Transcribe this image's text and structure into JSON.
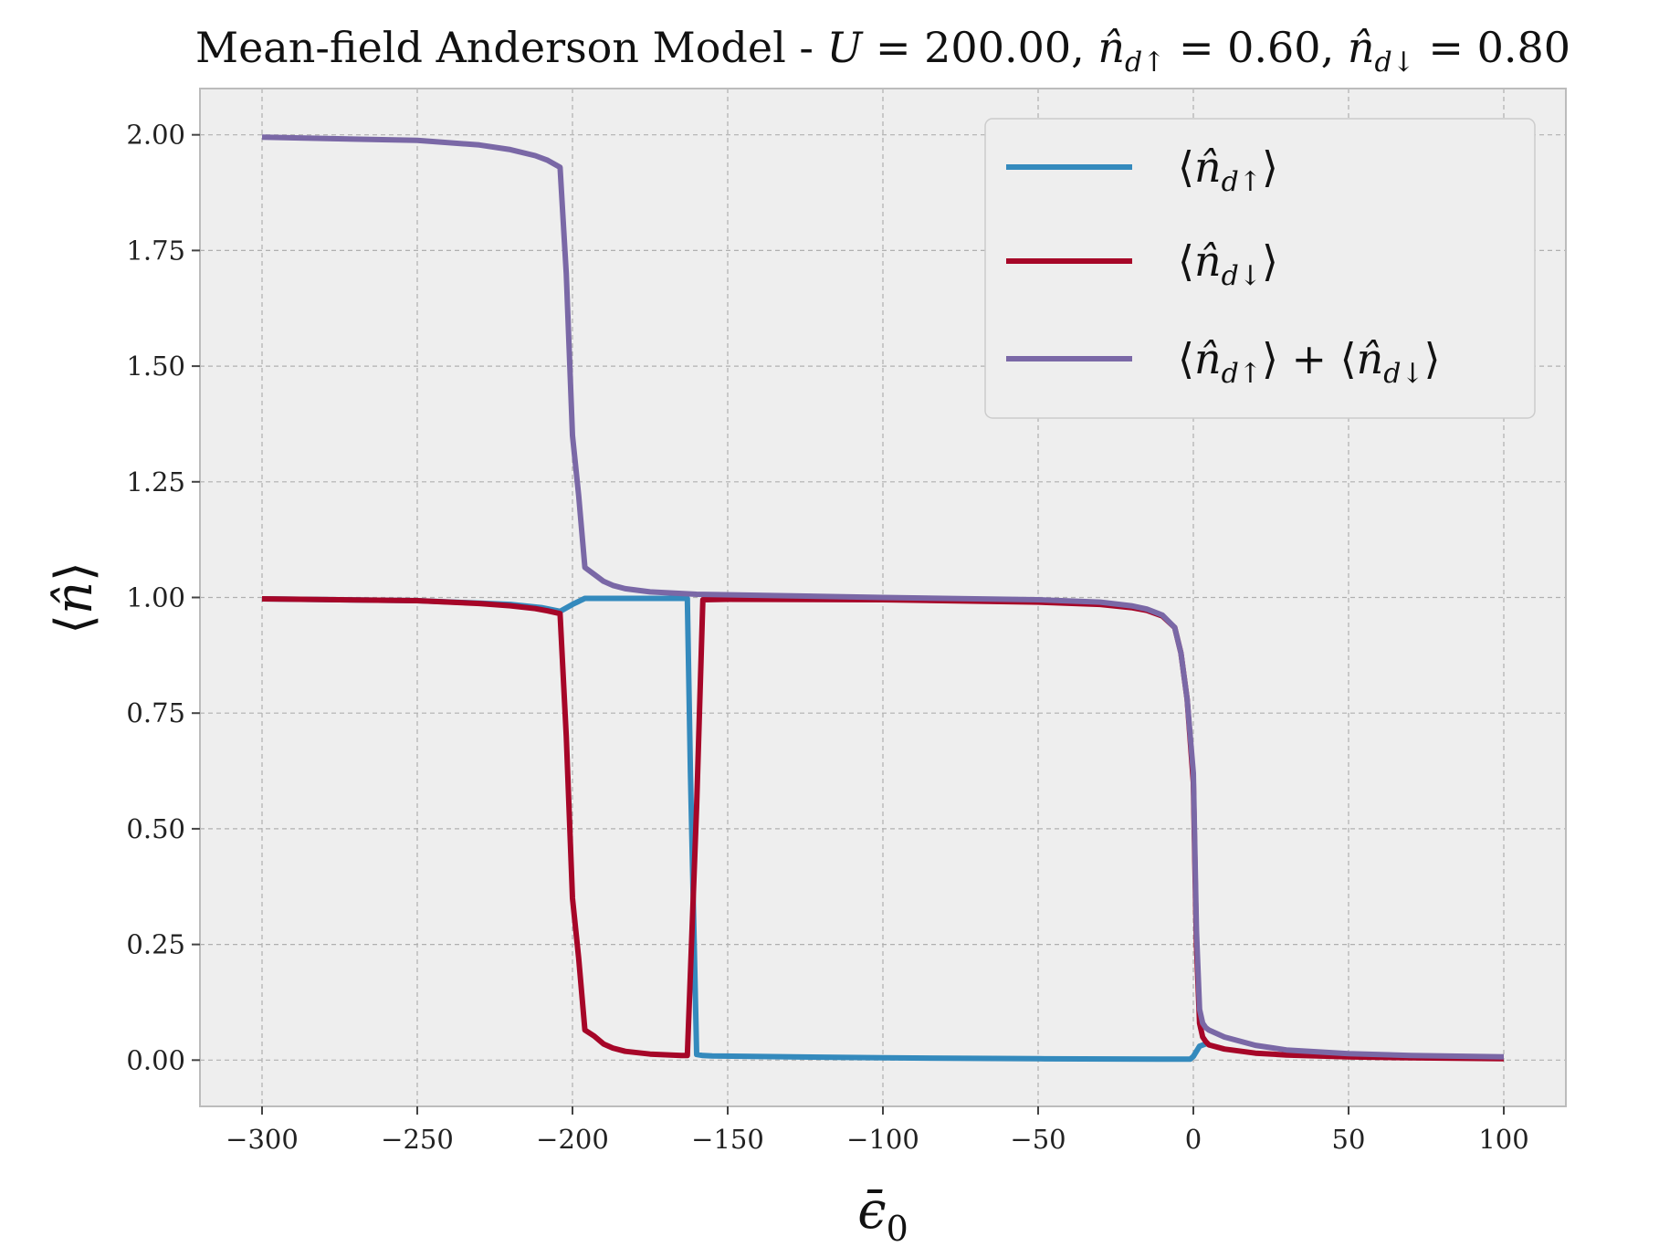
{
  "chart_data": {
    "type": "line",
    "title": "Mean-field Anderson Model - U = 200.00, n̂d↑ = 0.60, n̂d↓ = 0.80",
    "xlabel": "ϵ̄₀",
    "ylabel": "⟨n̂⟩",
    "xlim": [
      -320,
      120
    ],
    "ylim": [
      -0.1,
      2.1
    ],
    "xticks": [
      -300,
      -250,
      -200,
      -150,
      -100,
      -50,
      0,
      50,
      100
    ],
    "xtick_labels": [
      "−300",
      "−250",
      "−200",
      "−150",
      "−100",
      "−50",
      "0",
      "50",
      "100"
    ],
    "yticks": [
      0.0,
      0.25,
      0.5,
      0.75,
      1.0,
      1.25,
      1.5,
      1.75,
      2.0
    ],
    "ytick_labels": [
      "0.00",
      "0.25",
      "0.50",
      "0.75",
      "1.00",
      "1.25",
      "1.50",
      "1.75",
      "2.00"
    ],
    "grid": true,
    "legend_position": "top-right",
    "series": [
      {
        "name": "⟨n̂d↑⟩",
        "color": "#348ABD",
        "x": [
          -300,
          -250,
          -220,
          -210,
          -204,
          -200,
          -196,
          -170,
          -163,
          -162,
          -160,
          -158,
          -155,
          -100,
          -50,
          -10,
          -1,
          0,
          2,
          4
        ],
        "y": [
          0.997,
          0.993,
          0.985,
          0.978,
          0.97,
          0.985,
          0.998,
          0.998,
          0.998,
          0.62,
          0.012,
          0.01,
          0.009,
          0.005,
          0.003,
          0.002,
          0.002,
          0.008,
          0.03,
          0.035
        ]
      },
      {
        "name": "⟨n̂d↓⟩",
        "color": "#A60628",
        "x": [
          -300,
          -250,
          -230,
          -220,
          -212,
          -208,
          -204,
          -202,
          -200,
          -198,
          -196,
          -193,
          -190,
          -187,
          -183,
          -175,
          -165,
          -163,
          -160,
          -158,
          -150,
          -100,
          -50,
          -30,
          -20,
          -15,
          -10,
          -6,
          -4,
          -2,
          0,
          1,
          2,
          3,
          4,
          5,
          10,
          20,
          30,
          50,
          70,
          100
        ],
        "y": [
          0.997,
          0.993,
          0.987,
          0.982,
          0.976,
          0.971,
          0.965,
          0.7,
          0.35,
          0.22,
          0.065,
          0.052,
          0.035,
          0.026,
          0.019,
          0.013,
          0.01,
          0.01,
          0.55,
          0.995,
          0.996,
          0.995,
          0.99,
          0.985,
          0.978,
          0.972,
          0.96,
          0.935,
          0.88,
          0.78,
          0.6,
          0.25,
          0.08,
          0.05,
          0.04,
          0.033,
          0.024,
          0.015,
          0.011,
          0.007,
          0.005,
          0.003
        ]
      },
      {
        "name": "⟨n̂d↑⟩ + ⟨n̂d↓⟩",
        "color": "#7A68A6",
        "x": [
          -300,
          -250,
          -230,
          -220,
          -212,
          -208,
          -204,
          -202,
          -200,
          -198,
          -196,
          -193,
          -190,
          -187,
          -183,
          -175,
          -160,
          -100,
          -50,
          -30,
          -20,
          -15,
          -10,
          -6,
          -4,
          -2,
          0,
          1,
          2,
          3,
          4,
          5,
          10,
          20,
          30,
          50,
          70,
          100
        ],
        "y": [
          1.995,
          1.988,
          1.978,
          1.968,
          1.955,
          1.945,
          1.93,
          1.7,
          1.35,
          1.22,
          1.065,
          1.05,
          1.035,
          1.026,
          1.019,
          1.012,
          1.007,
          1.0,
          0.995,
          0.99,
          0.982,
          0.975,
          0.962,
          0.935,
          0.88,
          0.78,
          0.62,
          0.28,
          0.11,
          0.08,
          0.07,
          0.065,
          0.05,
          0.032,
          0.022,
          0.014,
          0.01,
          0.007
        ]
      }
    ]
  }
}
